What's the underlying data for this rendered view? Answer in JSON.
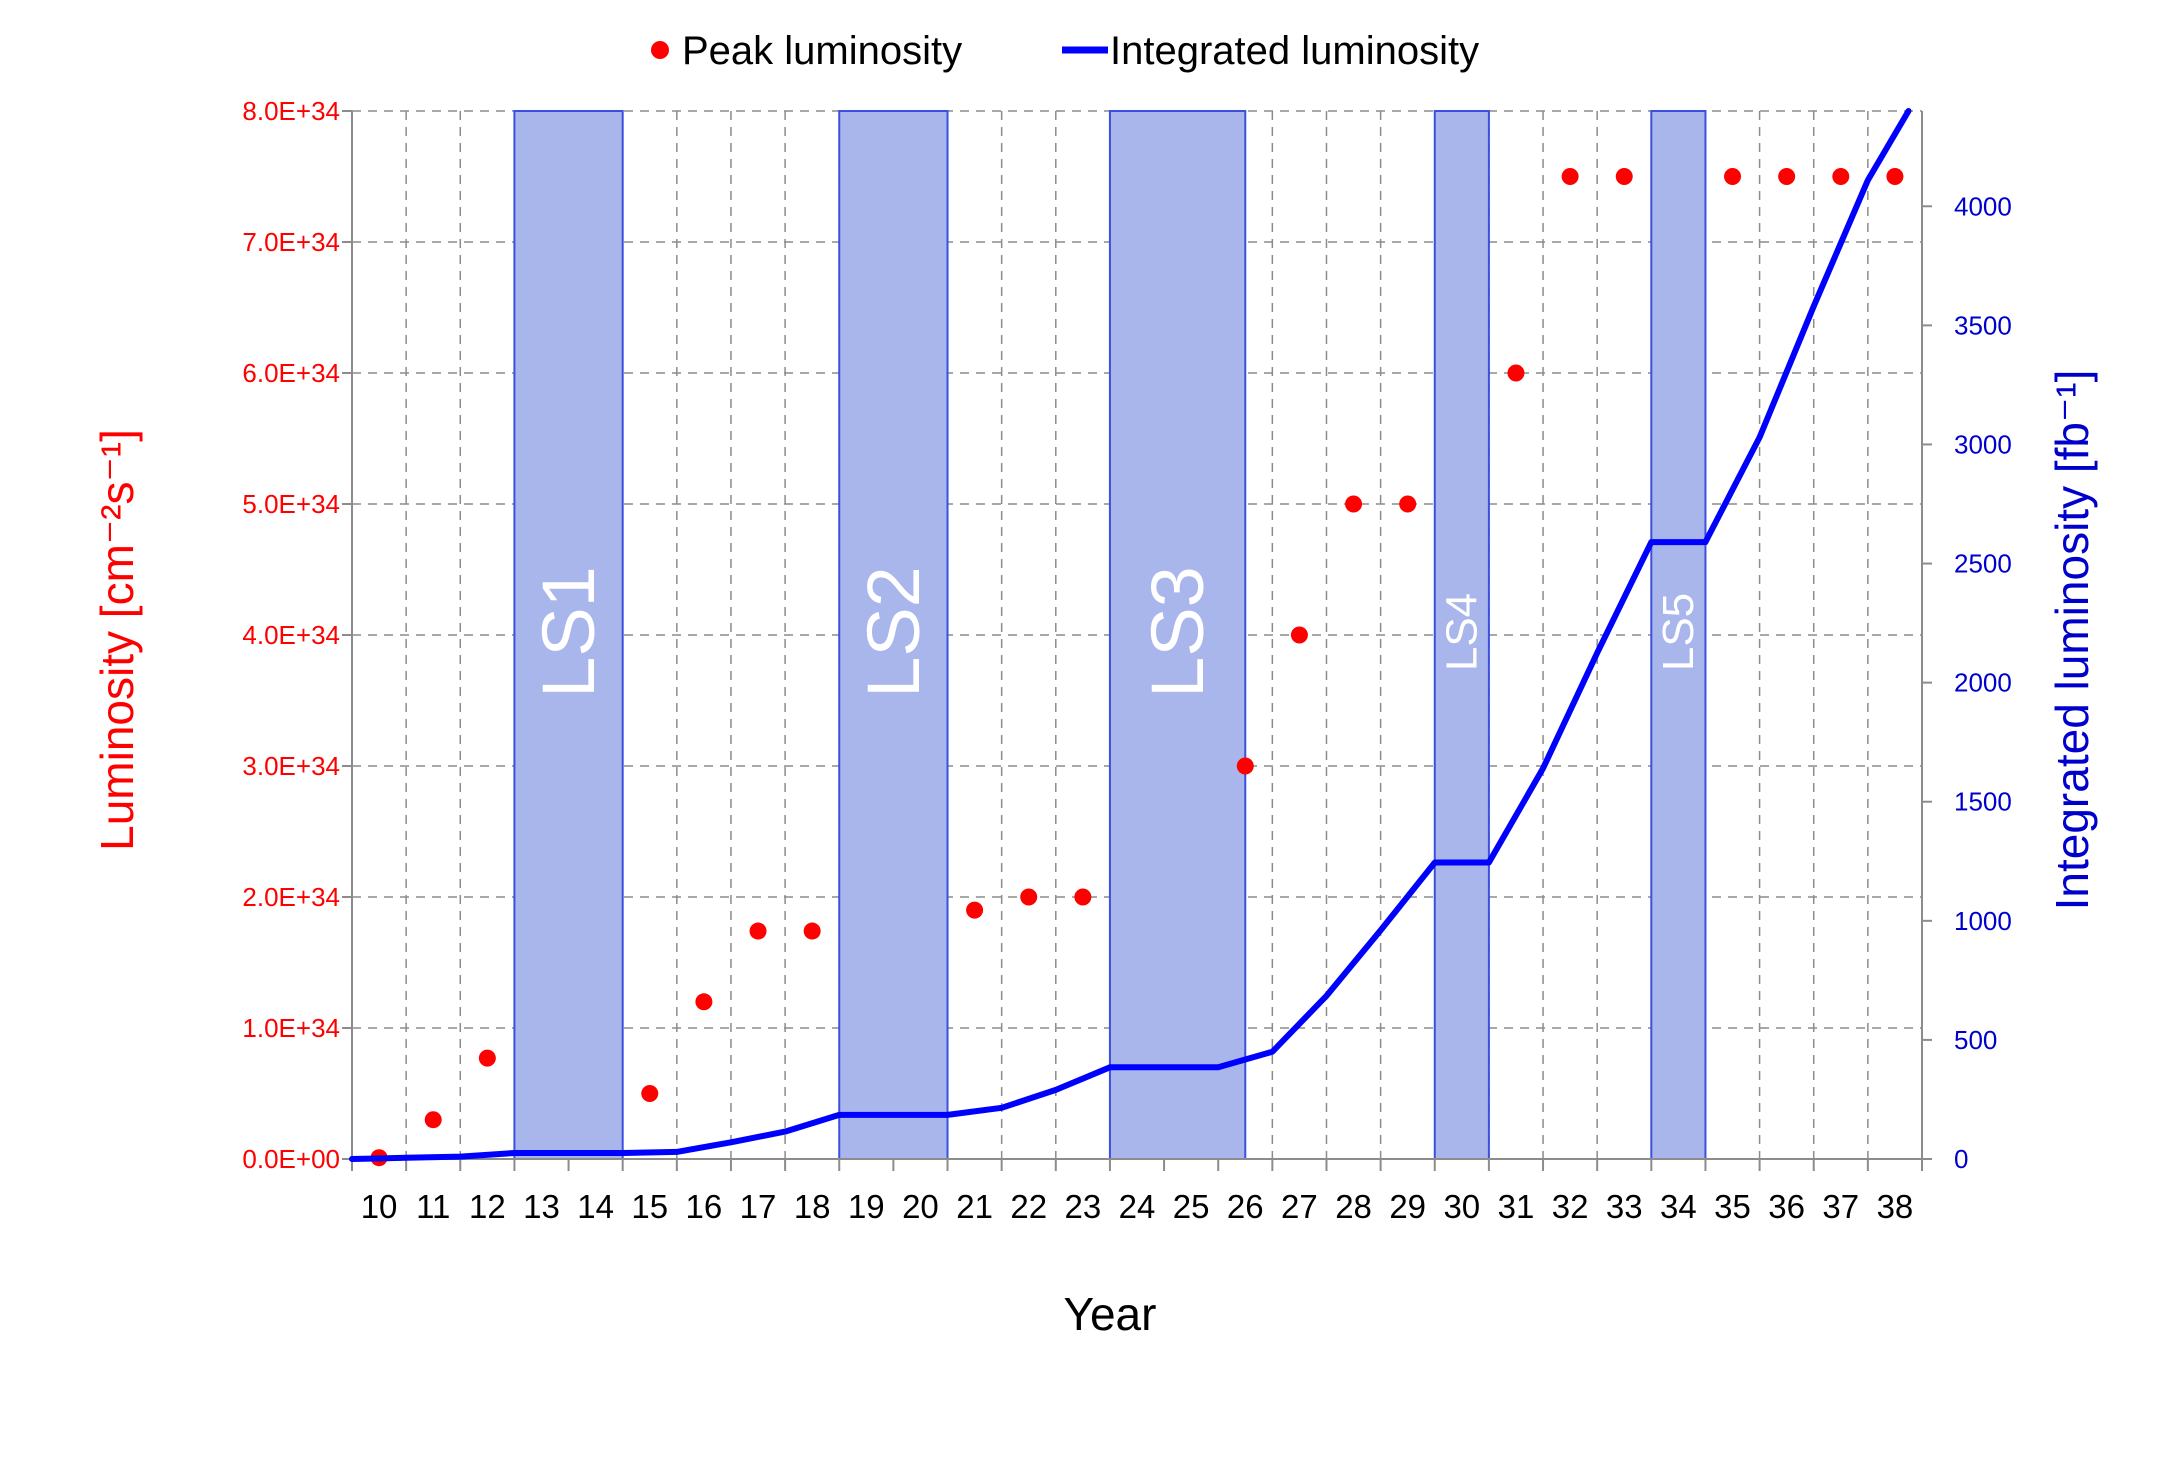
{
  "chart_data": {
    "type": "line",
    "title": "",
    "xlabel": "Year",
    "ylabel": "Luminosity [cm⁻²s⁻¹]",
    "y2label": "Integrated luminosity [fb⁻¹]",
    "categories": [
      "10",
      "11",
      "12",
      "13",
      "14",
      "15",
      "16",
      "17",
      "18",
      "19",
      "20",
      "21",
      "22",
      "23",
      "24",
      "25",
      "26",
      "27",
      "28",
      "29",
      "30",
      "31",
      "32",
      "33",
      "34",
      "35",
      "36",
      "37",
      "38"
    ],
    "ylim": [
      0,
      8e+34
    ],
    "y_ticks": [
      "0.0E+00",
      "1.0E+34",
      "2.0E+34",
      "3.0E+34",
      "4.0E+34",
      "5.0E+34",
      "6.0E+34",
      "7.0E+34",
      "8.0E+34"
    ],
    "y2lim": [
      0,
      4400
    ],
    "y2_ticks": [
      "0",
      "500",
      "1000",
      "1500",
      "2000",
      "2500",
      "3000",
      "3500",
      "4000"
    ],
    "grid": true,
    "legend_position": "top",
    "series": [
      {
        "name": "Peak luminosity",
        "kind": "scatter",
        "axis": "left",
        "color": "#ff0000",
        "points": [
          [
            10.5,
            1e+32
          ],
          [
            11.5,
            3e+33
          ],
          [
            12.5,
            7.7e+33
          ],
          [
            15.5,
            5e+33
          ],
          [
            16.5,
            1.2e+34
          ],
          [
            17.5,
            1.74e+34
          ],
          [
            18.5,
            1.74e+34
          ],
          [
            21.5,
            1.9e+34
          ],
          [
            22.5,
            2e+34
          ],
          [
            23.5,
            2e+34
          ],
          [
            26.5,
            3e+34
          ],
          [
            27.5,
            4e+34
          ],
          [
            28.5,
            5e+34
          ],
          [
            29.5,
            5e+34
          ],
          [
            31.5,
            6e+34
          ],
          [
            32.5,
            7.5e+34
          ],
          [
            33.5,
            7.5e+34
          ],
          [
            35.5,
            7.5e+34
          ],
          [
            36.5,
            7.5e+34
          ],
          [
            37.5,
            7.5e+34
          ],
          [
            38.5,
            7.5e+34
          ]
        ]
      },
      {
        "name": "Integrated luminosity",
        "kind": "line",
        "axis": "right",
        "color": "#0000ff",
        "points": [
          [
            10,
            0
          ],
          [
            11,
            5
          ],
          [
            12,
            10
          ],
          [
            13,
            25
          ],
          [
            14,
            25
          ],
          [
            15,
            25
          ],
          [
            16,
            30
          ],
          [
            17,
            70
          ],
          [
            18,
            115
          ],
          [
            19,
            185
          ],
          [
            20,
            185
          ],
          [
            21,
            185
          ],
          [
            22,
            215
          ],
          [
            23,
            290
          ],
          [
            24,
            385
          ],
          [
            25,
            385
          ],
          [
            26,
            385
          ],
          [
            27,
            450
          ],
          [
            28,
            685
          ],
          [
            29,
            960
          ],
          [
            30,
            1245
          ],
          [
            31,
            1245
          ],
          [
            32,
            1640
          ],
          [
            33,
            2125
          ],
          [
            34,
            2590
          ],
          [
            35,
            2590
          ],
          [
            36,
            3030
          ],
          [
            37,
            3580
          ],
          [
            38,
            4110
          ],
          [
            38.75,
            4400
          ]
        ]
      }
    ],
    "shaded_regions": [
      {
        "label": "LS1",
        "x_start": 13.0,
        "x_end": 15.0
      },
      {
        "label": "LS2",
        "x_start": 19.0,
        "x_end": 21.0
      },
      {
        "label": "LS3",
        "x_start": 24.0,
        "x_end": 26.5
      },
      {
        "label": "LS4",
        "x_start": 30.0,
        "x_end": 31.0
      },
      {
        "label": "LS5",
        "x_start": 34.0,
        "x_end": 35.0
      }
    ],
    "colors": {
      "left_axis": "#ff0000",
      "right_axis": "#0000cc",
      "shade_fill": "#a8b6eb",
      "shade_stroke": "#3b4fe0",
      "shade_label": "#ffffff"
    }
  }
}
